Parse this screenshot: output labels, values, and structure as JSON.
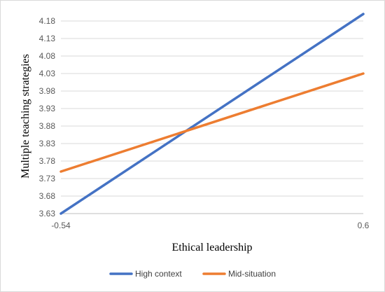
{
  "chart_data": {
    "type": "line",
    "x": [
      -0.54,
      0.6
    ],
    "x_tick_labels": [
      "-0.54",
      "0.6"
    ],
    "xlabel": "Ethical leadership",
    "ylabel": "Multiple teaching strategies",
    "ylim": [
      3.63,
      4.2
    ],
    "y_ticks": [
      3.63,
      3.68,
      3.73,
      3.78,
      3.83,
      3.88,
      3.93,
      3.98,
      4.03,
      4.08,
      4.13,
      4.18
    ],
    "grid": true,
    "legend_position": "bottom",
    "series": [
      {
        "name": "High context",
        "values": [
          3.63,
          4.2
        ],
        "color": "#4472C4"
      },
      {
        "name": "Mid-situation",
        "values": [
          3.75,
          4.03
        ],
        "color": "#ED7D31"
      }
    ]
  }
}
